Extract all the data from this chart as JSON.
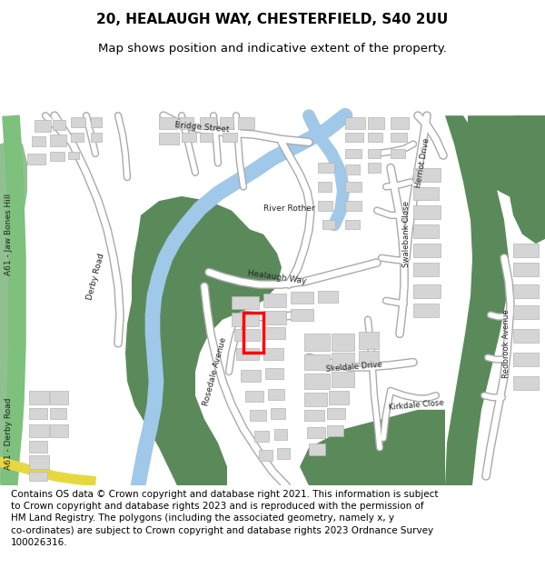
{
  "title_line1": "20, HEALAUGH WAY, CHESTERFIELD, S40 2UU",
  "title_line2": "Map shows position and indicative extent of the property.",
  "footer": "Contains OS data © Crown copyright and database right 2021. This information is subject to Crown copyright and database rights 2023 and is reproduced with the permission of HM Land Registry. The polygons (including the associated geometry, namely x, y co-ordinates) are subject to Crown copyright and database rights 2023 Ordnance Survey 100026316.",
  "bg_color": "#ffffff",
  "map_bg": "#f5f4f2",
  "road_color": "#ffffff",
  "road_outline": "#cccccc",
  "green_color": "#5a8a5a",
  "green_light": "#90c090",
  "water_color": "#a0c8e8",
  "building_color": "#d8d8d8",
  "building_outline": "#b0b0b0",
  "road_a_color": "#88cc88",
  "yellow_road": "#f0e060",
  "highlight_color": "#ff0000",
  "title_fontsize": 11,
  "footer_fontsize": 7.5
}
